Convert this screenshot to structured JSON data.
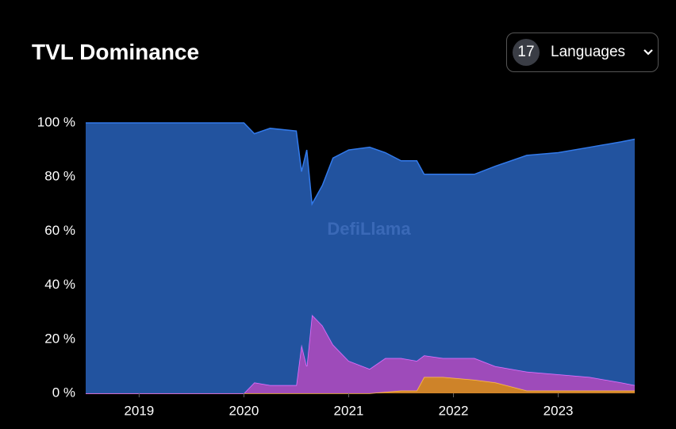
{
  "ui": {
    "language_count": "17",
    "language_button": "Languages"
  },
  "chart_data": {
    "type": "stacked-area",
    "title": "TVL Dominance",
    "watermark": "DefiLlama",
    "x": [
      2018.49,
      2020.0,
      2020.1,
      2020.25,
      2020.5,
      2020.55,
      2020.6,
      2020.65,
      2020.75,
      2020.85,
      2021.0,
      2021.2,
      2021.35,
      2021.5,
      2021.65,
      2021.72,
      2021.9,
      2022.2,
      2022.4,
      2022.7,
      2023.0,
      2023.3,
      2023.6,
      2023.73
    ],
    "series": [
      {
        "name": "Orange",
        "color": "#d98a2b",
        "values": [
          0,
          0,
          0,
          0,
          0,
          0,
          0,
          0,
          0,
          0,
          0,
          0,
          0.5,
          1,
          1,
          6,
          6,
          5,
          4,
          1,
          1,
          1,
          1,
          1
        ]
      },
      {
        "name": "Purple",
        "color": "#a64fc4",
        "values": [
          0,
          0,
          4,
          3,
          3,
          18,
          10,
          29,
          25,
          18,
          12,
          9,
          12.5,
          12,
          11,
          8,
          7,
          8,
          6,
          7,
          6,
          5,
          3,
          2
        ]
      },
      {
        "name": "Blue",
        "color": "#2457a8",
        "values": [
          100,
          100,
          92,
          95,
          94,
          64,
          80,
          41,
          52,
          69,
          78,
          82,
          76,
          73,
          74,
          67,
          68,
          68,
          74,
          80,
          82,
          85,
          89,
          91
        ]
      }
    ],
    "xlim": [
      2018.49,
      2023.73
    ],
    "xticks": [
      2019,
      2020,
      2021,
      2022,
      2023
    ],
    "ylim": [
      0,
      100
    ],
    "yticks": [
      {
        "value": 0,
        "label": "0 %"
      },
      {
        "value": 20,
        "label": "20 %"
      },
      {
        "value": 40,
        "label": "40 %"
      },
      {
        "value": 60,
        "label": "60 %"
      },
      {
        "value": 80,
        "label": "80 %"
      },
      {
        "value": 100,
        "label": "100 %"
      }
    ]
  }
}
